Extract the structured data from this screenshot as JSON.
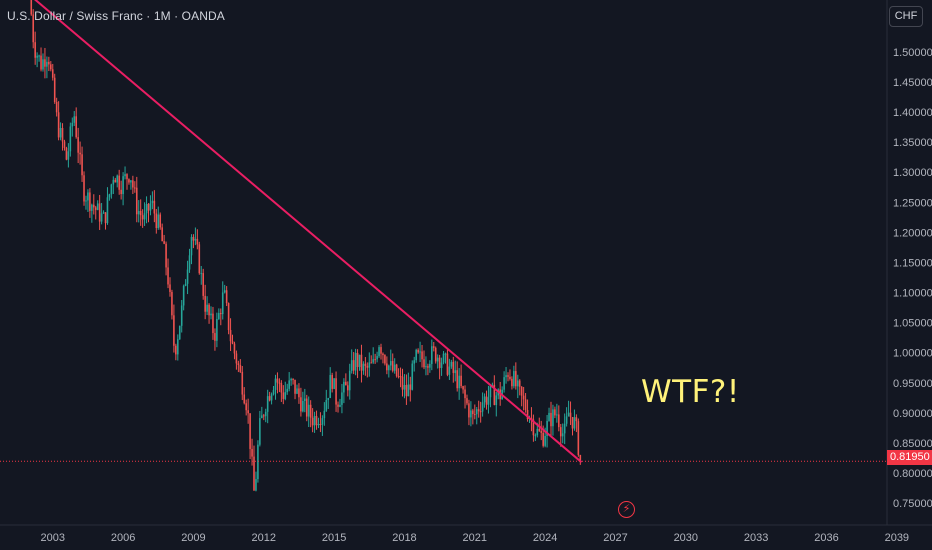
{
  "header": {
    "title": "U.S. Dollar / Swiss Franc · 1M · OANDA",
    "currency": "CHF"
  },
  "annotation": {
    "text": "WTF?!"
  },
  "last_price": {
    "label": "0.81950",
    "value": 0.8195,
    "color": "#f23645"
  },
  "event_icon": {
    "icon": "lightning-icon",
    "glyph": "⚡"
  },
  "colors": {
    "background": "#131722",
    "up": "#26a69a",
    "down": "#ef5350",
    "trendline": "#e91e63",
    "text": "#b2b5be",
    "annotation": "#fff27a"
  },
  "chart_data": {
    "type": "candlestick",
    "title": "U.S. Dollar / Swiss Franc · 1M · OANDA",
    "interval": "1M",
    "x_ticks": [
      "2003",
      "2006",
      "2009",
      "2012",
      "2015",
      "2018",
      "2021",
      "2024",
      "2027",
      "2030",
      "2033",
      "2036",
      "2039"
    ],
    "y_ticks": [
      "1.50000",
      "1.45000",
      "1.40000",
      "1.35000",
      "1.30000",
      "1.25000",
      "1.20000",
      "1.15000",
      "1.10000",
      "1.05000",
      "1.00000",
      "0.95000",
      "0.90000",
      "0.85000",
      "0.80000",
      "0.75000"
    ],
    "y_tick_values": [
      1.5,
      1.45,
      1.4,
      1.35,
      1.3,
      1.25,
      1.2,
      1.15,
      1.1,
      1.05,
      1.0,
      0.95,
      0.9,
      0.85,
      0.8,
      0.75
    ],
    "ylim": [
      0.7136,
      1.5862
    ],
    "xlim": [
      2000.75,
      2040.5
    ],
    "grid": false,
    "price_path": [
      [
        2002.0,
        1.6
      ],
      [
        2002.2,
        1.51
      ],
      [
        2002.5,
        1.48
      ],
      [
        2002.8,
        1.5
      ],
      [
        2003.2,
        1.38
      ],
      [
        2003.6,
        1.32
      ],
      [
        2003.9,
        1.4
      ],
      [
        2004.3,
        1.27
      ],
      [
        2004.8,
        1.24
      ],
      [
        2005.2,
        1.22
      ],
      [
        2005.6,
        1.3
      ],
      [
        2005.9,
        1.28
      ],
      [
        2006.3,
        1.3
      ],
      [
        2006.6,
        1.24
      ],
      [
        2006.9,
        1.22
      ],
      [
        2007.2,
        1.25
      ],
      [
        2007.6,
        1.2
      ],
      [
        2007.9,
        1.13
      ],
      [
        2008.2,
        1.0
      ],
      [
        2008.5,
        1.07
      ],
      [
        2008.9,
        1.2
      ],
      [
        2009.2,
        1.16
      ],
      [
        2009.5,
        1.08
      ],
      [
        2009.9,
        1.03
      ],
      [
        2010.3,
        1.1
      ],
      [
        2010.6,
        1.02
      ],
      [
        2010.9,
        0.98
      ],
      [
        2011.3,
        0.91
      ],
      [
        2011.6,
        0.76
      ],
      [
        2011.8,
        0.87
      ],
      [
        2012.1,
        0.92
      ],
      [
        2012.5,
        0.96
      ],
      [
        2012.8,
        0.93
      ],
      [
        2013.2,
        0.95
      ],
      [
        2013.7,
        0.91
      ],
      [
        2014.1,
        0.89
      ],
      [
        2014.5,
        0.9
      ],
      [
        2014.9,
        0.96
      ],
      [
        2015.1,
        0.92
      ],
      [
        2015.5,
        0.94
      ],
      [
        2015.9,
        0.99
      ],
      [
        2016.3,
        0.97
      ],
      [
        2016.7,
        0.98
      ],
      [
        2016.9,
        1.02
      ],
      [
        2017.3,
        0.98
      ],
      [
        2017.7,
        0.96
      ],
      [
        2018.1,
        0.93
      ],
      [
        2018.5,
        0.99
      ],
      [
        2018.9,
        0.99
      ],
      [
        2019.3,
        1.0
      ],
      [
        2019.8,
        0.98
      ],
      [
        2020.2,
        0.96
      ],
      [
        2020.6,
        0.92
      ],
      [
        2020.9,
        0.89
      ],
      [
        2021.3,
        0.92
      ],
      [
        2021.7,
        0.93
      ],
      [
        2022.1,
        0.93
      ],
      [
        2022.4,
        0.97
      ],
      [
        2022.6,
        0.96
      ],
      [
        2022.9,
        0.93
      ],
      [
        2023.3,
        0.9
      ],
      [
        2023.6,
        0.87
      ],
      [
        2023.9,
        0.86
      ],
      [
        2024.2,
        0.89
      ],
      [
        2024.5,
        0.9
      ],
      [
        2024.8,
        0.86
      ],
      [
        2025.0,
        0.9
      ],
      [
        2025.3,
        0.88
      ],
      [
        2025.5,
        0.82
      ]
    ],
    "trendline": {
      "from": [
        2002.0,
        1.595
      ],
      "to": [
        2025.55,
        0.818
      ]
    },
    "last_price_line": 0.8195
  }
}
